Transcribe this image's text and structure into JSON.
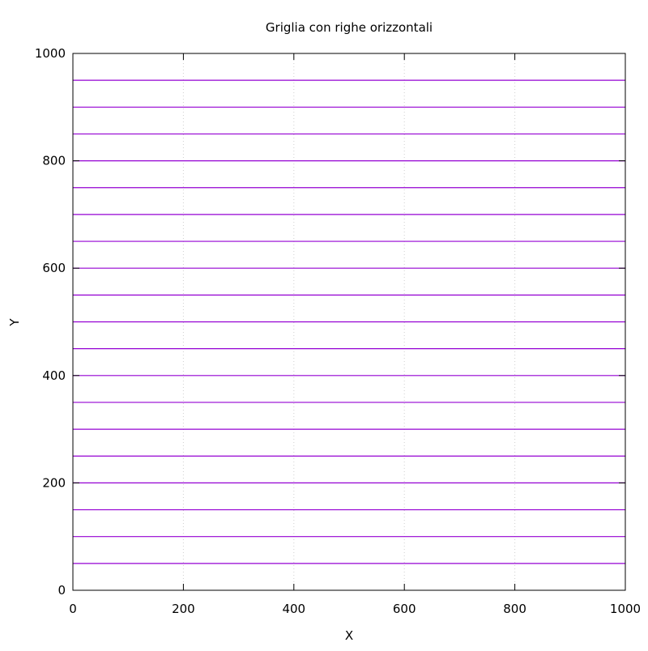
{
  "chart_data": {
    "type": "line",
    "title": "Griglia con righe orizzontali",
    "xlabel": "X",
    "ylabel": "Y",
    "xlim": [
      0,
      1000
    ],
    "ylim": [
      0,
      1000
    ],
    "x_ticks": [
      0,
      200,
      400,
      600,
      800,
      1000
    ],
    "y_ticks": [
      0,
      200,
      400,
      600,
      800,
      1000
    ],
    "grid": {
      "vertical": true,
      "horizontal": false,
      "style": "dotted",
      "color": "#d0d0d0"
    },
    "line_color": "#9400d3",
    "series": [
      {
        "x": [
          0,
          1000
        ],
        "y": [
          50,
          50
        ]
      },
      {
        "x": [
          0,
          1000
        ],
        "y": [
          100,
          100
        ]
      },
      {
        "x": [
          0,
          1000
        ],
        "y": [
          150,
          150
        ]
      },
      {
        "x": [
          0,
          1000
        ],
        "y": [
          200,
          200
        ]
      },
      {
        "x": [
          0,
          1000
        ],
        "y": [
          250,
          250
        ]
      },
      {
        "x": [
          0,
          1000
        ],
        "y": [
          300,
          300
        ]
      },
      {
        "x": [
          0,
          1000
        ],
        "y": [
          350,
          350
        ]
      },
      {
        "x": [
          0,
          1000
        ],
        "y": [
          400,
          400
        ]
      },
      {
        "x": [
          0,
          1000
        ],
        "y": [
          450,
          450
        ]
      },
      {
        "x": [
          0,
          1000
        ],
        "y": [
          500,
          500
        ]
      },
      {
        "x": [
          0,
          1000
        ],
        "y": [
          550,
          550
        ]
      },
      {
        "x": [
          0,
          1000
        ],
        "y": [
          600,
          600
        ]
      },
      {
        "x": [
          0,
          1000
        ],
        "y": [
          650,
          650
        ]
      },
      {
        "x": [
          0,
          1000
        ],
        "y": [
          700,
          700
        ]
      },
      {
        "x": [
          0,
          1000
        ],
        "y": [
          750,
          750
        ]
      },
      {
        "x": [
          0,
          1000
        ],
        "y": [
          800,
          800
        ]
      },
      {
        "x": [
          0,
          1000
        ],
        "y": [
          850,
          850
        ]
      },
      {
        "x": [
          0,
          1000
        ],
        "y": [
          900,
          900
        ]
      },
      {
        "x": [
          0,
          1000
        ],
        "y": [
          950,
          950
        ]
      }
    ]
  }
}
